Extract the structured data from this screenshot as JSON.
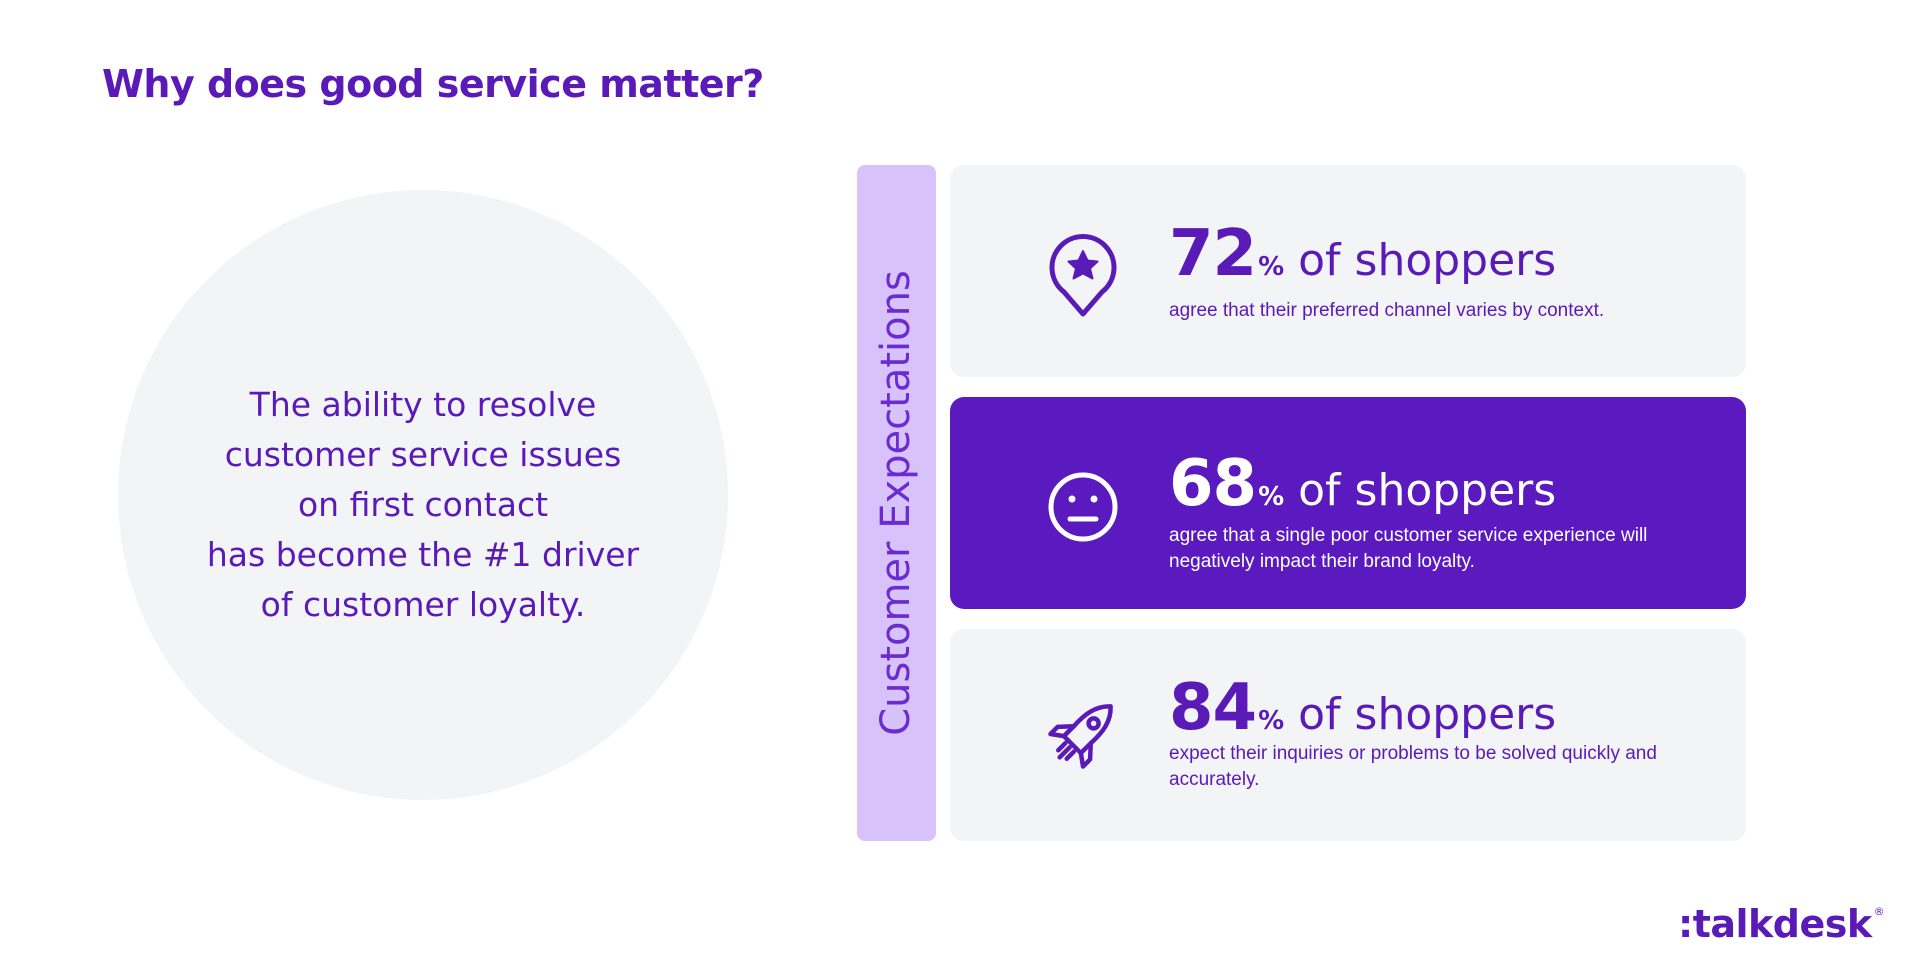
{
  "title": "Why does good service matter?",
  "circle": {
    "lines": [
      "The ability to resolve",
      "customer service issues",
      "on first contact",
      "has become the #1 driver",
      "of customer loyalty."
    ]
  },
  "side_label": "Customer Expectations",
  "cards": [
    {
      "icon": "star-location-pin-icon",
      "number": "72",
      "percent": "%",
      "label": "of shoppers",
      "description": "agree that their preferred channel varies by context."
    },
    {
      "icon": "neutral-face-icon",
      "number": "68",
      "percent": "%",
      "label": "of shoppers",
      "description": "agree that a single poor customer service experience will negatively impact their brand loyalty."
    },
    {
      "icon": "rocket-icon",
      "number": "84",
      "percent": "%",
      "label": "of shoppers",
      "description": "expect their inquiries or problems to be solved quickly and accurately."
    }
  ],
  "logo": {
    "text": ":talkdesk",
    "mark": "®"
  },
  "colors": {
    "brand_purple": "#5a1ab8",
    "highlight_card": "#5a1abf",
    "label_bar": "#d8c2fb",
    "card_background": "#f3f4f6"
  }
}
